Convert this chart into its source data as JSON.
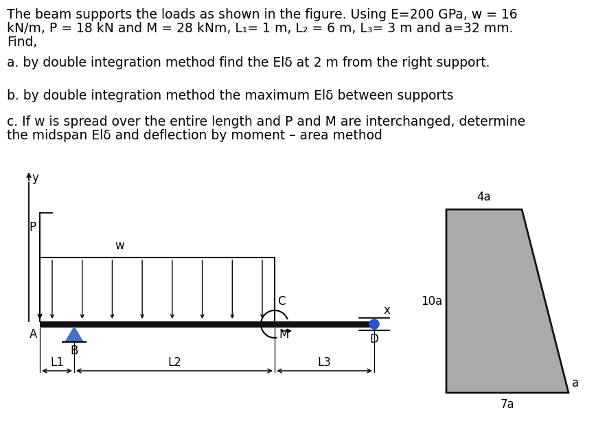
{
  "bg_color": "#ffffff",
  "beam_color": "#111111",
  "triangle_color": "#4472c4",
  "dot_color": "#2255cc",
  "trapezoid_color": "#aaaaaa",
  "trapezoid_edge": "#111111",
  "font_size_text": 13.5,
  "font_size_labels": 12,
  "text_lines": [
    "The beam supports the loads as shown in the figure. Using E=200 GPa, w = 16",
    "kN/m, P = 18 kN and M = 28 kNm, L₁= 1 m, L₂ = 6 m, L₃= 3 m and a=32 mm.",
    "Find,"
  ],
  "part_a": "a. by double integration method find the Elδ at 2 m from the right support.",
  "part_b": "b. by double integration method the maximum Elδ between supports",
  "part_c_1": "c. If w is spread over the entire length and P and M are interchanged, determine",
  "part_c_2": "the midspan Elδ and deflection by moment – area method"
}
